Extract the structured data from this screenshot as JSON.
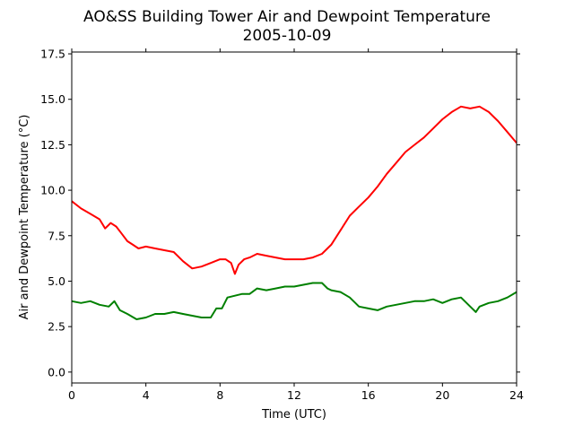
{
  "chart_data": {
    "type": "line",
    "title": "AO&SS Building Tower Air and Dewpoint Temperature",
    "subtitle": "2005-10-09",
    "xlabel": "Time (UTC)",
    "ylabel": "Air and Dewpoint Temperature (°C)",
    "xlim": [
      0,
      24
    ],
    "ylim": [
      -0.6,
      17.6
    ],
    "x_ticks": [
      0,
      4,
      8,
      12,
      16,
      20,
      24
    ],
    "x_tick_labels": [
      "0",
      "4",
      "8",
      "12",
      "16",
      "20",
      "24"
    ],
    "y_ticks": [
      0.0,
      2.5,
      5.0,
      7.5,
      10.0,
      12.5,
      15.0,
      17.5
    ],
    "y_tick_labels": [
      "0.0",
      "2.5",
      "5.0",
      "7.5",
      "10.0",
      "12.5",
      "15.0",
      "17.5"
    ],
    "grid": false,
    "legend": "none",
    "series": [
      {
        "color": "#ff0000",
        "x": [
          0,
          0.5,
          1.0,
          1.5,
          1.8,
          2.1,
          2.4,
          2.7,
          3.0,
          3.3,
          3.6,
          4.0,
          4.5,
          5.0,
          5.5,
          6.0,
          6.5,
          7.0,
          7.5,
          8.0,
          8.3,
          8.6,
          8.8,
          9.0,
          9.3,
          9.6,
          10.0,
          10.5,
          11.0,
          11.5,
          12.0,
          12.5,
          13.0,
          13.5,
          14.0,
          14.5,
          15.0,
          15.5,
          16.0,
          16.5,
          17.0,
          17.5,
          18.0,
          18.5,
          19.0,
          19.5,
          20.0,
          20.5,
          21.0,
          21.5,
          22.0,
          22.5,
          23.0,
          23.5,
          24.0
        ],
        "y": [
          9.4,
          9.0,
          8.7,
          8.4,
          7.9,
          8.2,
          8.0,
          7.6,
          7.2,
          7.0,
          6.8,
          6.9,
          6.8,
          6.7,
          6.6,
          6.1,
          5.7,
          5.8,
          6.0,
          6.2,
          6.2,
          6.0,
          5.4,
          5.9,
          6.2,
          6.3,
          6.5,
          6.4,
          6.3,
          6.2,
          6.2,
          6.2,
          6.3,
          6.5,
          7.0,
          7.8,
          8.6,
          9.1,
          9.6,
          10.2,
          10.9,
          11.5,
          12.1,
          12.5,
          12.9,
          13.4,
          13.9,
          14.3,
          14.6,
          14.5,
          14.6,
          14.3,
          13.8,
          13.2,
          12.6
        ]
      },
      {
        "color": "#008000",
        "x": [
          0,
          0.5,
          1.0,
          1.5,
          2.0,
          2.3,
          2.6,
          3.0,
          3.5,
          4.0,
          4.5,
          5.0,
          5.5,
          6.0,
          6.5,
          7.0,
          7.5,
          7.8,
          8.1,
          8.4,
          8.8,
          9.2,
          9.6,
          10.0,
          10.5,
          11.0,
          11.5,
          12.0,
          12.5,
          13.0,
          13.5,
          13.8,
          14.0,
          14.5,
          15.0,
          15.5,
          16.0,
          16.5,
          17.0,
          17.5,
          18.0,
          18.5,
          19.0,
          19.5,
          20.0,
          20.5,
          21.0,
          21.5,
          21.8,
          22.0,
          22.5,
          23.0,
          23.5,
          24.0
        ],
        "y": [
          3.9,
          3.8,
          3.9,
          3.7,
          3.6,
          3.9,
          3.4,
          3.2,
          2.9,
          3.0,
          3.2,
          3.2,
          3.3,
          3.2,
          3.1,
          3.0,
          3.0,
          3.5,
          3.5,
          4.1,
          4.2,
          4.3,
          4.3,
          4.6,
          4.5,
          4.6,
          4.7,
          4.7,
          4.8,
          4.9,
          4.9,
          4.6,
          4.5,
          4.4,
          4.1,
          3.6,
          3.5,
          3.4,
          3.6,
          3.7,
          3.8,
          3.9,
          3.9,
          4.0,
          3.8,
          4.0,
          4.1,
          3.6,
          3.3,
          3.6,
          3.8,
          3.9,
          4.1,
          4.4
        ]
      }
    ]
  }
}
